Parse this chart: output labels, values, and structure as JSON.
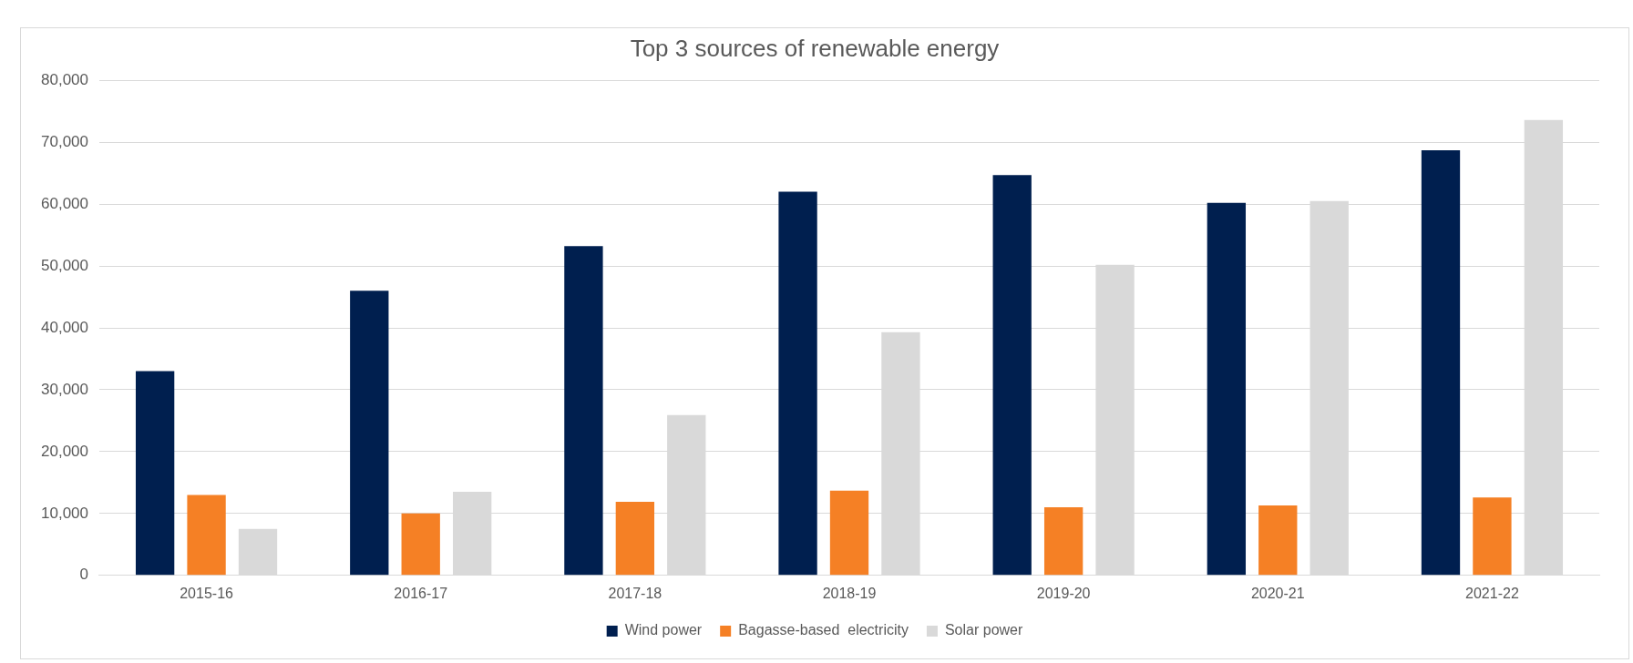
{
  "chart_data": {
    "type": "bar",
    "title": "Top 3 sources of renewable energy",
    "categories": [
      "2015-16",
      "2016-17",
      "2017-18",
      "2018-19",
      "2019-20",
      "2020-21",
      "2021-22"
    ],
    "series": [
      {
        "name": "Wind power",
        "color": "#001f4f",
        "values": [
          33000,
          46000,
          53200,
          62000,
          64700,
          60200,
          68700
        ]
      },
      {
        "name": "Bagasse-based  electricity",
        "color": "#f58025",
        "values": [
          13000,
          10000,
          11900,
          13700,
          11000,
          11300,
          12600
        ]
      },
      {
        "name": "Solar power",
        "color": "#d9d9d9",
        "values": [
          7500,
          13500,
          25900,
          39300,
          50200,
          60500,
          73600
        ]
      }
    ],
    "ylim": [
      0,
      80000
    ],
    "yticks": [
      {
        "value": 0,
        "label": "0"
      },
      {
        "value": 10000,
        "label": "10,000"
      },
      {
        "value": 20000,
        "label": "20,000"
      },
      {
        "value": 30000,
        "label": "30,000"
      },
      {
        "value": 40000,
        "label": "40,000"
      },
      {
        "value": 50000,
        "label": "50,000"
      },
      {
        "value": 60000,
        "label": "60,000"
      },
      {
        "value": 70000,
        "label": "70,000"
      },
      {
        "value": 80000,
        "label": "80,000"
      }
    ],
    "grid": "y",
    "legend": "bottom"
  }
}
